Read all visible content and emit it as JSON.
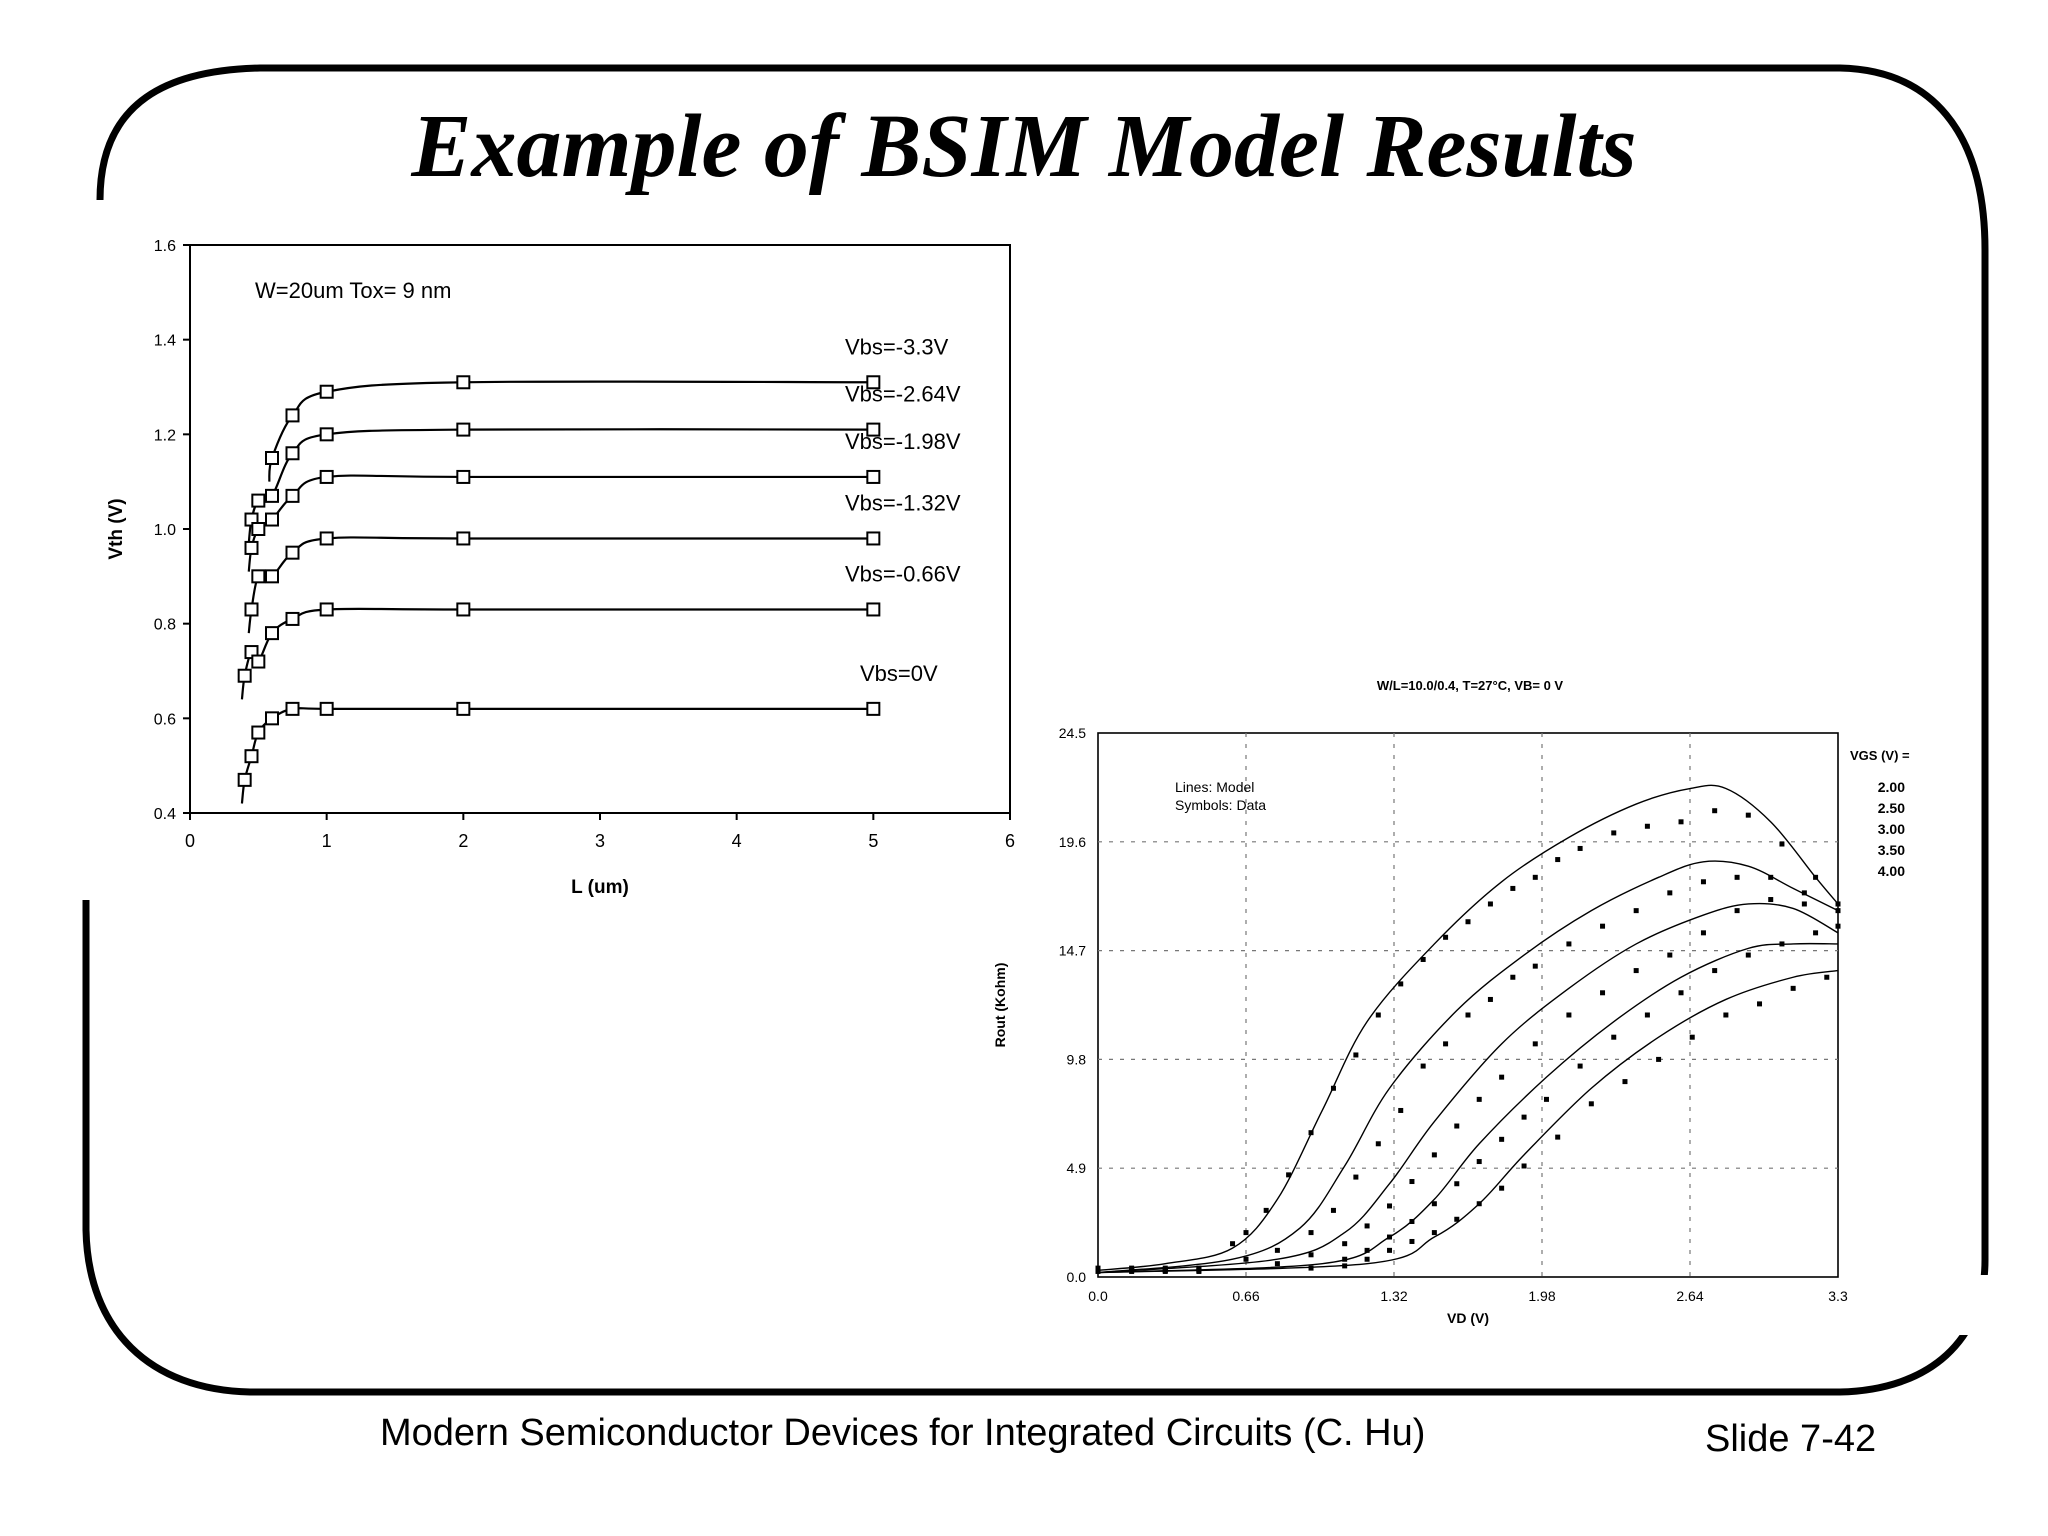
{
  "slide": {
    "title": "Example of BSIM Model Results",
    "footer": "Modern Semiconductor Devices for Integrated Circuits (C. Hu)",
    "slide_number": "Slide 7-42"
  },
  "colors": {
    "ink": "#000000",
    "background": "#ffffff",
    "grid": "#777777"
  },
  "chart_data": [
    {
      "type": "line",
      "title": "",
      "annotation": "W=20um    Tox= 9 nm",
      "xlabel": "L (um)",
      "ylabel": "Vth (V)",
      "xlim": [
        0,
        6
      ],
      "ylim": [
        0.4,
        1.6
      ],
      "xticks": [
        "0",
        "1",
        "2",
        "3",
        "4",
        "5",
        "6"
      ],
      "yticks": [
        "0.4",
        "0.6",
        "0.8",
        "1.0",
        "1.2",
        "1.4",
        "1.6"
      ],
      "grid": false,
      "series": [
        {
          "name": "Vbs=-3.3V",
          "x": [
            0.6,
            0.75,
            1.0,
            2.0,
            5.0
          ],
          "y": [
            1.15,
            1.24,
            1.29,
            1.31,
            1.31
          ]
        },
        {
          "name": "Vbs=-2.64V",
          "x": [
            0.45,
            0.5,
            0.6,
            0.75,
            1.0,
            2.0,
            5.0
          ],
          "y": [
            1.02,
            1.06,
            1.07,
            1.16,
            1.2,
            1.21,
            1.21
          ]
        },
        {
          "name": "Vbs=-1.98V",
          "x": [
            0.45,
            0.5,
            0.6,
            0.75,
            1.0,
            2.0,
            5.0
          ],
          "y": [
            0.96,
            1.0,
            1.02,
            1.07,
            1.11,
            1.11,
            1.11
          ]
        },
        {
          "name": "Vbs=-1.32V",
          "x": [
            0.45,
            0.5,
            0.6,
            0.75,
            1.0,
            2.0,
            5.0
          ],
          "y": [
            0.83,
            0.9,
            0.9,
            0.95,
            0.98,
            0.98,
            0.98
          ]
        },
        {
          "name": "Vbs=-0.66V",
          "x": [
            0.4,
            0.45,
            0.5,
            0.6,
            0.75,
            1.0,
            2.0,
            5.0
          ],
          "y": [
            0.69,
            0.74,
            0.72,
            0.78,
            0.81,
            0.83,
            0.83,
            0.83
          ]
        },
        {
          "name": "Vbs=0V",
          "x": [
            0.4,
            0.45,
            0.5,
            0.6,
            0.75,
            1.0,
            2.0,
            5.0
          ],
          "y": [
            0.47,
            0.52,
            0.57,
            0.6,
            0.62,
            0.62,
            0.62,
            0.62
          ]
        }
      ],
      "legend_placement": "inline-right"
    },
    {
      "type": "line",
      "title": "W/L=10.0/0.4, T=27°C, VB= 0 V",
      "annotation": [
        "Lines: Model",
        "Symbols: Data"
      ],
      "legend_title": "VGS (V) =",
      "xlabel": "VD (V)",
      "ylabel": "Rout (Kohm)",
      "xlim": [
        0,
        3.3
      ],
      "ylim": [
        0,
        24.5
      ],
      "xticks": [
        "0.0",
        "0.66",
        "1.32",
        "1.98",
        "2.64",
        "3.3"
      ],
      "yticks": [
        "0.0",
        "4.9",
        "9.8",
        "14.7",
        "19.6",
        "24.5"
      ],
      "grid": true,
      "series": [
        {
          "name": "2.00",
          "model": {
            "x": [
              0,
              0.3,
              0.6,
              0.8,
              1.0,
              1.2,
              1.5,
              1.8,
              2.1,
              2.4,
              2.64,
              2.8,
              3.0,
              3.2,
              3.3
            ],
            "y": [
              0.3,
              0.6,
              1.3,
              3.5,
              7.5,
              11.5,
              15.0,
              17.8,
              19.8,
              21.3,
              22.0,
              22.0,
              20.5,
              18.0,
              16.8
            ]
          },
          "data": {
            "x": [
              0.6,
              0.66,
              0.75,
              0.85,
              0.95,
              1.05,
              1.15,
              1.25,
              1.35,
              1.45,
              1.55,
              1.65,
              1.75,
              1.85,
              1.95,
              2.05,
              2.15,
              2.3,
              2.45,
              2.6,
              2.75,
              2.9,
              3.05,
              3.2,
              3.3
            ],
            "y": [
              1.5,
              2.0,
              3.0,
              4.6,
              6.5,
              8.5,
              10.0,
              11.8,
              13.2,
              14.3,
              15.3,
              16.0,
              16.8,
              17.5,
              18.0,
              18.8,
              19.3,
              20.0,
              20.3,
              20.5,
              21.0,
              20.8,
              19.5,
              18.0,
              16.8
            ]
          }
        },
        {
          "name": "2.50",
          "model": {
            "x": [
              0,
              0.6,
              0.9,
              1.1,
              1.3,
              1.6,
              1.9,
              2.2,
              2.5,
              2.7,
              2.9,
              3.1,
              3.3
            ],
            "y": [
              0.2,
              0.8,
              2.2,
              5.0,
              8.5,
              12.0,
              14.5,
              16.5,
              18.0,
              18.7,
              18.5,
              17.5,
              16.5
            ]
          },
          "data": {
            "x": [
              0.66,
              0.8,
              0.95,
              1.05,
              1.15,
              1.25,
              1.35,
              1.45,
              1.55,
              1.65,
              1.75,
              1.85,
              1.95,
              2.1,
              2.25,
              2.4,
              2.55,
              2.7,
              2.85,
              3.0,
              3.15,
              3.3
            ],
            "y": [
              0.8,
              1.2,
              2.0,
              3.0,
              4.5,
              6.0,
              7.5,
              9.5,
              10.5,
              11.8,
              12.5,
              13.5,
              14.0,
              15.0,
              15.8,
              16.5,
              17.3,
              17.8,
              18.0,
              18.0,
              17.3,
              16.8
            ]
          }
        },
        {
          "name": "3.00",
          "model": {
            "x": [
              0,
              0.8,
              1.1,
              1.3,
              1.5,
              1.8,
              2.1,
              2.4,
              2.7,
              2.9,
              3.1,
              3.3
            ],
            "y": [
              0.2,
              0.8,
              2.0,
              4.2,
              7.0,
              10.5,
              13.0,
              15.0,
              16.3,
              16.8,
              16.6,
              15.5
            ]
          },
          "data": {
            "x": [
              0.8,
              0.95,
              1.1,
              1.2,
              1.3,
              1.4,
              1.5,
              1.6,
              1.7,
              1.8,
              1.95,
              2.1,
              2.25,
              2.4,
              2.55,
              2.7,
              2.85,
              3.0,
              3.15,
              3.3
            ],
            "y": [
              0.6,
              1.0,
              1.5,
              2.3,
              3.2,
              4.3,
              5.5,
              6.8,
              8.0,
              9.0,
              10.5,
              11.8,
              12.8,
              13.8,
              14.5,
              15.5,
              16.5,
              17.0,
              16.8,
              16.5
            ]
          }
        },
        {
          "name": "3.50",
          "model": {
            "x": [
              0,
              1.0,
              1.3,
              1.5,
              1.7,
              2.0,
              2.3,
              2.6,
              2.9,
              3.1,
              3.3
            ],
            "y": [
              0.2,
              0.6,
              1.8,
              3.5,
              6.0,
              9.0,
              11.5,
              13.5,
              14.8,
              15.0,
              15.0
            ]
          },
          "data": {
            "x": [
              0.95,
              1.1,
              1.2,
              1.3,
              1.4,
              1.5,
              1.6,
              1.7,
              1.8,
              1.9,
              2.0,
              2.15,
              2.3,
              2.45,
              2.6,
              2.75,
              2.9,
              3.05,
              3.2,
              3.3
            ],
            "y": [
              0.4,
              0.8,
              1.2,
              1.8,
              2.5,
              3.3,
              4.2,
              5.2,
              6.2,
              7.2,
              8.0,
              9.5,
              10.8,
              11.8,
              12.8,
              13.8,
              14.5,
              15.0,
              15.5,
              15.8
            ]
          }
        },
        {
          "name": "4.00",
          "model": {
            "x": [
              0,
              1.2,
              1.5,
              1.7,
              1.9,
              2.2,
              2.5,
              2.8,
              3.1,
              3.3
            ],
            "y": [
              0.2,
              0.6,
              1.8,
              3.3,
              5.5,
              8.5,
              10.8,
              12.5,
              13.5,
              13.8
            ]
          },
          "data": {
            "x": [
              1.1,
              1.2,
              1.3,
              1.4,
              1.5,
              1.6,
              1.7,
              1.8,
              1.9,
              2.05,
              2.2,
              2.35,
              2.5,
              2.65,
              2.8,
              2.95,
              3.1,
              3.25
            ],
            "y": [
              0.5,
              0.8,
              1.2,
              1.6,
              2.0,
              2.6,
              3.3,
              4.0,
              5.0,
              6.3,
              7.8,
              8.8,
              9.8,
              10.8,
              11.8,
              12.3,
              13.0,
              13.5
            ]
          }
        }
      ],
      "legend_placement": "right"
    }
  ]
}
